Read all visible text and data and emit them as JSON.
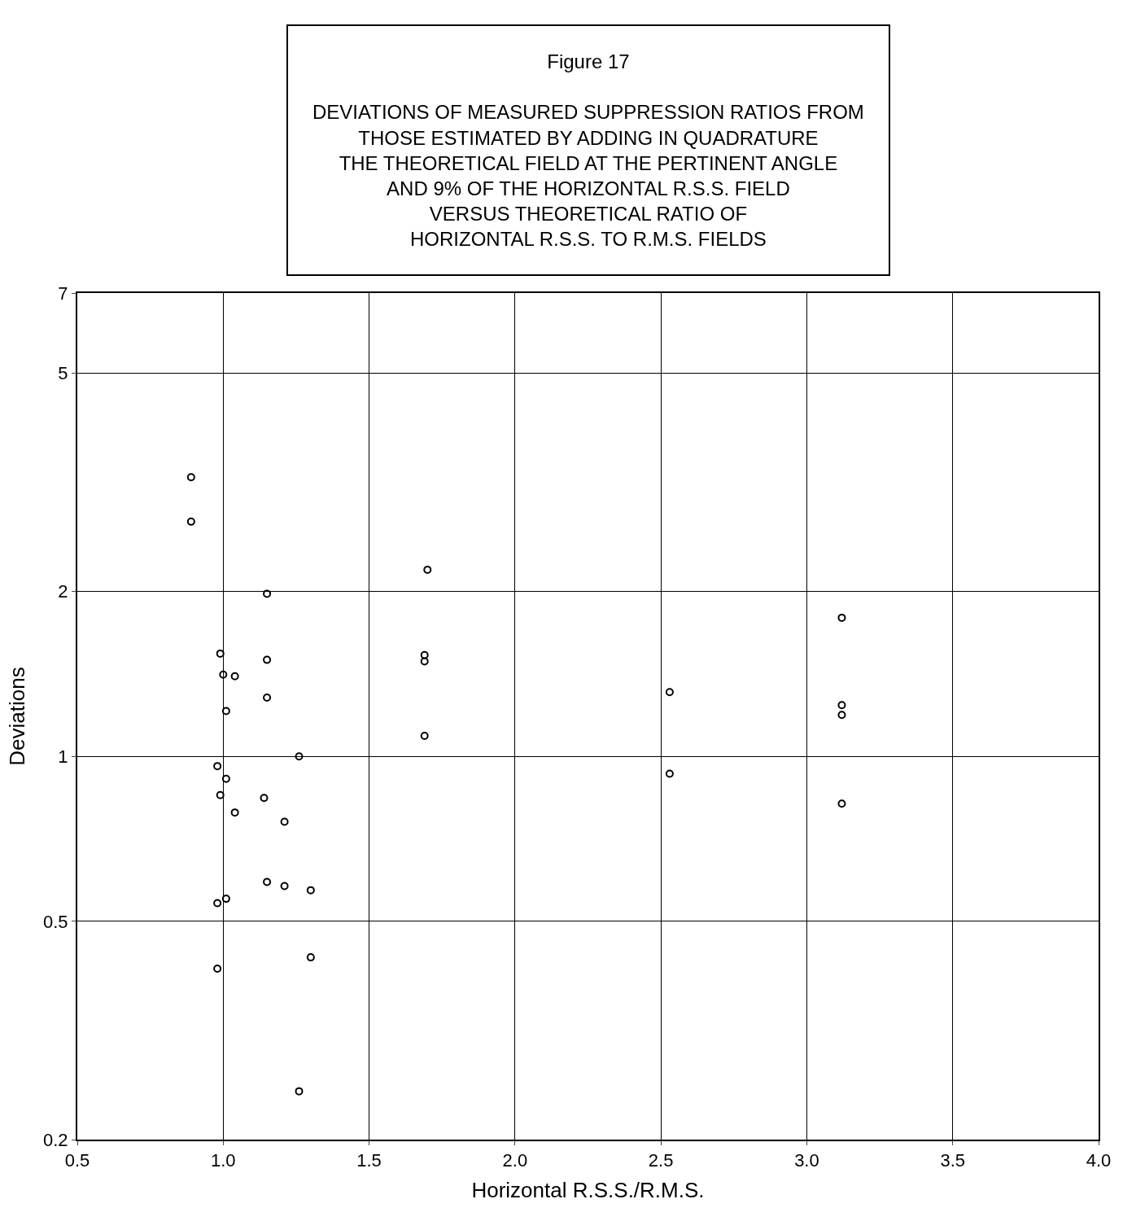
{
  "chart_data": {
    "type": "scatter",
    "title": "Figure 17",
    "subtitle": "DEVIATIONS OF MEASURED SUPPRESSION RATIOS FROM\nTHOSE ESTIMATED BY ADDING IN QUADRATURE\nTHE THEORETICAL FIELD AT THE PERTINENT ANGLE\nAND 9% OF THE HORIZONTAL R.S.S. FIELD\nVERSUS THEORETICAL RATIO OF\nHORIZONTAL R.S.S. TO R.M.S. FIELDS",
    "xlabel": "Horizontal R.S.S./R.M.S.",
    "ylabel": "Deviations",
    "series": [
      {
        "color": "#000000",
        "x": [
          0.89,
          0.89,
          1.7,
          1.15,
          3.12,
          0.99,
          1.15,
          1.69,
          1.69,
          1.0,
          1.04,
          1.15,
          2.53,
          3.12,
          3.12,
          1.01,
          1.69,
          1.26,
          0.98,
          1.01,
          2.53,
          0.99,
          1.14,
          1.04,
          3.12,
          1.21,
          1.15,
          1.21,
          1.3,
          1.01,
          0.98,
          1.3,
          0.98,
          1.26
        ],
        "values": [
          3.23,
          2.68,
          2.19,
          1.98,
          1.79,
          1.54,
          1.5,
          1.53,
          1.49,
          1.41,
          1.4,
          1.28,
          1.31,
          1.24,
          1.19,
          1.21,
          1.09,
          1.0,
          0.96,
          0.91,
          0.93,
          0.85,
          0.84,
          0.79,
          0.82,
          0.76,
          0.59,
          0.58,
          0.57,
          0.55,
          0.54,
          0.43,
          0.41,
          0.245
        ]
      }
    ],
    "xlim": [
      0.5,
      4.0
    ],
    "xticks": [
      0.5,
      {
        "value": 1,
        "label": "1.0"
      },
      1.5,
      {
        "value": 2,
        "label": "2.0"
      },
      2.5,
      {
        "value": 3,
        "label": "3.0"
      },
      3.5,
      {
        "value": 4,
        "label": "4.0"
      }
    ],
    "ylim": [
      0.2,
      7
    ],
    "yticks": [
      0.2,
      0.5,
      1,
      2,
      5,
      7
    ],
    "log": "y",
    "grid": true,
    "marker": "circle"
  }
}
